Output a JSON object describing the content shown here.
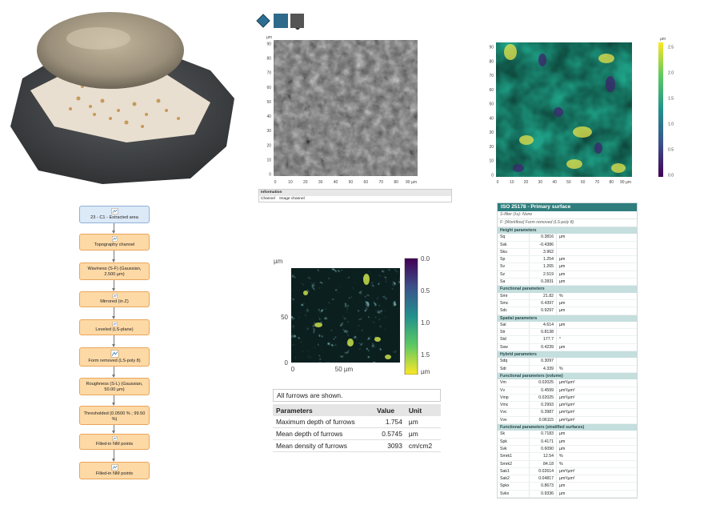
{
  "workflow": [
    {
      "label": "23 - C1 - Extracted area",
      "icon": "surface-icon"
    },
    {
      "label": "Topography channel",
      "icon": "topography-icon"
    },
    {
      "label": "Waviness (S-F) (Gaussian, 2.500 µm)",
      "icon": "filter-icon"
    },
    {
      "label": "Mirrored (in Z)",
      "icon": "mirror-icon"
    },
    {
      "label": "Leveled (LS-plane)",
      "icon": "level-icon"
    },
    {
      "label": "Form removed (LS-poly 8)",
      "icon": "form-removed-icon"
    },
    {
      "label": "Roughness (S-L) (Gaussian, 50.00 µm)",
      "icon": "filter-icon"
    },
    {
      "label": "Thresholded (0.0500 % ; 99.50 %)",
      "icon": "threshold-icon"
    },
    {
      "label": "Filled-in NM points",
      "icon": "fill-icon"
    },
    {
      "label": "Filled-in NM points",
      "icon": "fill-surface-icon"
    }
  ],
  "grey_map": {
    "y_unit": "µm",
    "y_ticks": [
      "0",
      "10",
      "20",
      "30",
      "40",
      "50",
      "60",
      "70",
      "80",
      "90"
    ],
    "x_ticks": [
      "0",
      "10",
      "20",
      "30",
      "40",
      "50",
      "60",
      "70",
      "80",
      "90 µm"
    ]
  },
  "info_panel": {
    "heading": "Information",
    "key": "Channel",
    "value": "Image channel"
  },
  "color_map": {
    "y_ticks": [
      "0",
      "10",
      "20",
      "30",
      "40",
      "50",
      "60",
      "70",
      "80",
      "90"
    ],
    "x_ticks": [
      "0",
      "10",
      "20",
      "30",
      "40",
      "50",
      "60",
      "70",
      "80",
      "90 µm"
    ],
    "scale_unit": "µm",
    "scale_ticks": [
      "2.5",
      "2.0",
      "1.5",
      "1.0",
      "0.5",
      "0.0"
    ]
  },
  "furrow_map": {
    "y_unit": "µm",
    "y_ticks": [
      "50",
      "0"
    ],
    "x_ticks": [
      "0",
      "50 µm"
    ],
    "scale_ticks": [
      "0.0",
      "0.5",
      "1.0",
      "1.5"
    ],
    "scale_unit": "µm"
  },
  "furrows": {
    "note": "All furrows are shown.",
    "headers": [
      "Parameters",
      "Value",
      "Unit"
    ],
    "rows": [
      {
        "name": "Maximum depth of furrows",
        "value": "1.754",
        "unit": "µm"
      },
      {
        "name": "Mean depth of furrows",
        "value": "0.5745",
        "unit": "µm"
      },
      {
        "name": "Mean density of furrows",
        "value": "3093",
        "unit": "cm/cm2"
      }
    ]
  },
  "iso": {
    "title": "ISO 25178 - Primary surface",
    "notes": [
      "S-filter (λs): None",
      "F: [Workflow] Form removed (LS-poly 8)"
    ],
    "sections": [
      {
        "title": "Height parameters",
        "rows": [
          {
            "n": "Sq",
            "v": "0.3816",
            "u": "µm"
          },
          {
            "n": "Ssk",
            "v": "-0.4386",
            "u": ""
          },
          {
            "n": "Sku",
            "v": "3.962",
            "u": ""
          },
          {
            "n": "Sp",
            "v": "1.254",
            "u": "µm"
          },
          {
            "n": "Sv",
            "v": "1.265",
            "u": "µm"
          },
          {
            "n": "Sz",
            "v": "2.519",
            "u": "µm"
          },
          {
            "n": "Sa",
            "v": "0.2831",
            "u": "µm"
          }
        ]
      },
      {
        "title": "Functional parameters",
        "rows": [
          {
            "n": "Smr",
            "v": "21.82",
            "u": "%"
          },
          {
            "n": "Smc",
            "v": "0.4397",
            "u": "µm"
          },
          {
            "n": "Sdc",
            "v": "0.9297",
            "u": "µm"
          }
        ]
      },
      {
        "title": "Spatial parameters",
        "rows": [
          {
            "n": "Sal",
            "v": "4.614",
            "u": "µm"
          },
          {
            "n": "Str",
            "v": "0.8138",
            "u": ""
          },
          {
            "n": "Std",
            "v": "177.7",
            "u": "°"
          },
          {
            "n": "Ssw",
            "v": "0.4239",
            "u": "µm"
          }
        ]
      },
      {
        "title": "Hybrid parameters",
        "rows": [
          {
            "n": "Sdq",
            "v": "0.3097",
            "u": ""
          },
          {
            "n": "Sdr",
            "v": "4.339",
            "u": "%"
          }
        ]
      },
      {
        "title": "Functional parameters (volume)",
        "rows": [
          {
            "n": "Vm",
            "v": "0.02025",
            "u": "µm³/µm²"
          },
          {
            "n": "Vv",
            "v": "0.4599",
            "u": "µm³/µm²"
          },
          {
            "n": "Vmp",
            "v": "0.02025",
            "u": "µm³/µm²"
          },
          {
            "n": "Vmc",
            "v": "0.2993",
            "u": "µm³/µm²"
          },
          {
            "n": "Vvc",
            "v": "0.3987",
            "u": "µm³/µm²"
          },
          {
            "n": "Vvv",
            "v": "0.06115",
            "u": "µm³/µm²"
          }
        ]
      },
      {
        "title": "Functional parameters (stratified surfaces)",
        "rows": [
          {
            "n": "Sk",
            "v": "0.7183",
            "u": "µm"
          },
          {
            "n": "Spk",
            "v": "0.4171",
            "u": "µm"
          },
          {
            "n": "Svk",
            "v": "0.6090",
            "u": "µm"
          },
          {
            "n": "Smrk1",
            "v": "12.54",
            "u": "%"
          },
          {
            "n": "Smrk2",
            "v": "84.18",
            "u": "%"
          },
          {
            "n": "Sak1",
            "v": "0.02614",
            "u": "µm³/µm²"
          },
          {
            "n": "Sak2",
            "v": "0.04817",
            "u": "µm³/µm²"
          },
          {
            "n": "Spkx",
            "v": "0.8673",
            "u": "µm"
          },
          {
            "n": "Svkx",
            "v": "0.9336",
            "u": "µm"
          }
        ]
      }
    ]
  },
  "colors": {
    "accent": "#2f7d7d",
    "workflow_fill": "#fdd9a6",
    "workflow_border": "#e8a65a"
  }
}
